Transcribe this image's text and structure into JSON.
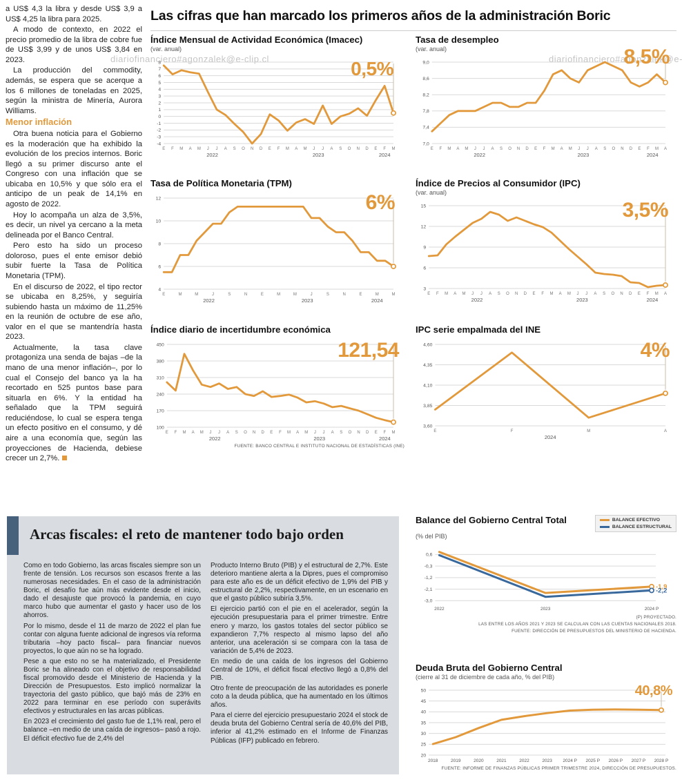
{
  "watermark": "diariofinanciero#agonzalek@e-clip.cl",
  "colors": {
    "accent": "#E2993B",
    "blue": "#39699C",
    "panel": "#D9DDE2",
    "accent_bar": "#47617C"
  },
  "month_letters": [
    "E",
    "F",
    "M",
    "A",
    "M",
    "J",
    "J",
    "A",
    "S",
    "O",
    "N",
    "D"
  ],
  "article": {
    "paragraphs": [
      "a US$ 4,3 la libra y desde US$ 3,9 a US$ 4,25 la libra para 2025.",
      "A modo de contexto, en 2022 el precio promedio de la libra de cobre fue de US$ 3,99 y de unos US$ 3,84 en 2023.",
      "La producción del commodity, además, se espera que se acerque a los 6 millones de toneladas en 2025, según la ministra de Minería, Aurora Williams."
    ],
    "subhead": "Menor inflación",
    "paragraphs2": [
      "Otra buena noticia para el Gobierno es la moderación que ha exhibido la evolución de los precios internos. Boric llegó a su primer discurso ante el Congreso con una inflación que se ubicaba en 10,5% y que sólo era el anticipo de un peak de 14,1% en agosto de 2022.",
      "Hoy lo acompaña un alza de 3,5%, es decir, un nivel ya cercano a la meta delineada por el Banco Central.",
      "Pero esto ha sido un proceso doloroso, pues el ente emisor debió subir fuerte la Tasa de Política Monetaria (TPM).",
      "En el discurso de 2022, el tipo rector se ubicaba en 8,25%, y seguiría subiendo hasta un máximo de 11,25% en la reunión de octubre de ese año, valor en el que se mantendría hasta 2023.",
      "Actualmente, la tasa clave protagoniza una senda de bajas –de la mano de una menor inflación–, por lo cual el Consejo del banco ya la ha recortado en 525 puntos base para situarla en 6%. Y la entidad ha señalado que la TPM seguirá reduciéndose, lo cual se espera tenga un efecto positivo en el consumo, y dé aire a una economía que, según las proyecciones de Hacienda, debiese crecer un 2,7%."
    ]
  },
  "main": {
    "title": "Las cifras que han marcado los primeros años de la administración Boric",
    "source": "FUENTE: BANCO CENTRAL E INSTITUTO NACIONAL DE ESTADÍSTICAS (INE)"
  },
  "fiscal": {
    "title": "Arcas fiscales: el reto de mantener todo bajo orden",
    "col1": [
      "Como en todo Gobierno, las arcas fiscales siempre son un frente de tensión. Los recursos son escasos frente a las numerosas necesidades. En el caso de la administración Boric, el desafío fue aún más evidente desde el inicio, dado el desajuste que provocó la pandemia, en cuyo marco hubo que aumentar el gasto y hacer uso de los ahorros.",
      "Por lo mismo, desde el 11 de marzo de 2022 el plan fue contar con alguna fuente adicional de ingresos vía reforma tributaria –hoy pacto fiscal– para financiar nuevos proyectos, lo que aún no se ha logrado.",
      "Pese a que esto no se ha materializado, el Presidente Boric se ha alineado con el objetivo de responsabilidad fiscal promovido desde el Ministerio de Hacienda y la Dirección de Presupuestos. Esto implicó normalizar la trayectoria del gasto público, que bajó más de 23% en 2022 para terminar en ese período con superávits efectivos y estructurales en las arcas públicas.",
      "En 2023 el crecimiento del gasto fue de 1,1% real, pero el balance –en medio de una caída de ingresos– pasó a rojo. El déficit efectivo fue de 2,4% del"
    ],
    "col2": [
      "Producto Interno Bruto (PIB) y el estructural de 2,7%. Este deterioro mantiene alerta a la Dipres, pues el compromiso para este año es de un déficit efectivo de 1,9% del PIB y estructural de 2,2%, respectivamente, en un escenario en que el gasto público subiría 3,5%.",
      "El ejercicio partió con el pie en el acelerador, según la ejecución presupuestaria para el primer trimestre. Entre enero y marzo, los gastos totales del sector público se expandieron 7,7% respecto al mismo lapso del año anterior, una aceleración si se compara con la tasa de variación de 5,4% de 2023.",
      "En medio de una caída de los ingresos del Gobierno Central de 10%, el déficit fiscal efectivo llegó a 0,8% del PIB.",
      "Otro frente de preocupación de las autoridades es ponerle coto a la deuda pública, que ha aumentado en los últimos años.",
      "Para el cierre del ejercicio presupuestario 2024 el stock de deuda bruta del Gobierno Central sería de 40,6% del PIB, inferior al 41,2% estimado en el Informe de Finanzas Públicas (IFP) publicado en febrero."
    ]
  },
  "chart_data": [
    {
      "id": "imacec",
      "type": "line",
      "title": "Índice Mensual de Actividad Económica (Imacec)",
      "subtitle": "(var. anual)",
      "big_value": "0,5%",
      "ylim": [
        -4,
        8
      ],
      "y_ticks": [
        8,
        7,
        6,
        5,
        4,
        3,
        2,
        1,
        0,
        -1,
        -2,
        -3,
        -4
      ],
      "y_tick_labels": [
        "8",
        "7",
        "6",
        "5",
        "4",
        "3",
        "2",
        "1",
        "0",
        "-1",
        "-2",
        "-3",
        "-4"
      ],
      "x_mode": "months",
      "label_every": 1,
      "years": [
        "2022",
        "2023",
        "2024"
      ],
      "series": [
        {
          "name": "Imacec",
          "color": "accent",
          "end_dot": true,
          "values": [
            7.5,
            6.2,
            6.8,
            6.5,
            6.3,
            3.6,
            1.0,
            0.2,
            -1.1,
            -2.3,
            -4.0,
            -2.6,
            0.3,
            -0.6,
            -2.1,
            -0.9,
            -0.4,
            -1.1,
            1.6,
            -1.1,
            0.0,
            0.4,
            1.2,
            0.1,
            2.4,
            4.5,
            0.5
          ]
        }
      ]
    },
    {
      "id": "desempleo",
      "type": "line",
      "title": "Tasa de desempleo",
      "subtitle": "(var. anual)",
      "big_value": "8,5%",
      "ylim": [
        7.0,
        9.0
      ],
      "y_ticks": [
        9.0,
        8.6,
        8.2,
        7.8,
        7.4,
        7.0
      ],
      "y_tick_labels": [
        "9,0",
        "8,6",
        "8,2",
        "7,8",
        "7,4",
        "7,0"
      ],
      "x_mode": "months",
      "label_every": 1,
      "years": [
        "2022",
        "2023",
        "2024"
      ],
      "series": [
        {
          "name": "Tasa de desempleo",
          "color": "accent",
          "end_dot": true,
          "values": [
            7.3,
            7.5,
            7.7,
            7.8,
            7.8,
            7.8,
            7.9,
            8.0,
            8.0,
            7.9,
            7.9,
            8.0,
            8.0,
            8.3,
            8.7,
            8.8,
            8.6,
            8.5,
            8.8,
            8.9,
            9.0,
            8.9,
            8.8,
            8.5,
            8.4,
            8.5,
            8.7,
            8.5
          ]
        }
      ]
    },
    {
      "id": "tpm",
      "type": "line",
      "title": "Tasa de Política Monetaria (TPM)",
      "big_value": "6%",
      "ylim": [
        4,
        12
      ],
      "y_ticks": [
        12,
        10,
        8,
        6,
        4
      ],
      "y_tick_labels": [
        "12",
        "10",
        "8",
        "6",
        "4"
      ],
      "x_mode": "months",
      "label_every": 2,
      "years": [
        "2022",
        "2023",
        "2024"
      ],
      "series": [
        {
          "name": "TPM",
          "color": "accent",
          "end_dot": true,
          "values": [
            5.5,
            5.5,
            7.0,
            7.0,
            8.25,
            9.0,
            9.75,
            9.75,
            10.75,
            11.25,
            11.25,
            11.25,
            11.25,
            11.25,
            11.25,
            11.25,
            11.25,
            11.25,
            10.25,
            10.25,
            9.5,
            9.0,
            9.0,
            8.25,
            7.25,
            7.25,
            6.5,
            6.5,
            6.0
          ]
        }
      ]
    },
    {
      "id": "ipc",
      "type": "line",
      "title": "Índice de Precios al Consumidor (IPC)",
      "subtitle": "(var. anual)",
      "big_value": "3,5%",
      "ylim": [
        3,
        15
      ],
      "y_ticks": [
        15,
        12,
        9,
        6,
        3
      ],
      "y_tick_labels": [
        "15",
        "12",
        "9",
        "6",
        "3"
      ],
      "x_mode": "months",
      "label_every": 1,
      "years": [
        "2022",
        "2023",
        "2024"
      ],
      "series": [
        {
          "name": "IPC",
          "color": "accent",
          "end_dot": true,
          "values": [
            7.7,
            7.8,
            9.4,
            10.5,
            11.5,
            12.5,
            13.1,
            14.1,
            13.7,
            12.8,
            13.3,
            12.8,
            12.3,
            11.9,
            11.1,
            9.9,
            8.7,
            7.6,
            6.5,
            5.3,
            5.1,
            5.0,
            4.8,
            3.9,
            3.8,
            3.2,
            3.4,
            3.5
          ]
        }
      ]
    },
    {
      "id": "incertidumbre",
      "type": "line",
      "title": "Índice diario de incertidumbre económica",
      "big_value": "121,54",
      "ylim": [
        100,
        450
      ],
      "y_ticks": [
        450,
        380,
        310,
        240,
        170,
        100
      ],
      "y_tick_labels": [
        "450",
        "380",
        "310",
        "240",
        "170",
        "100"
      ],
      "x_mode": "months",
      "label_every": 1,
      "years": [
        "2022",
        "2023",
        "2024"
      ],
      "series": [
        {
          "name": "Incertidumbre económica",
          "color": "accent",
          "end_dot": true,
          "values": [
            290,
            255,
            410,
            340,
            280,
            270,
            285,
            262,
            270,
            240,
            232,
            252,
            228,
            232,
            238,
            225,
            205,
            210,
            200,
            185,
            190,
            180,
            170,
            155,
            140,
            130,
            121.54
          ]
        }
      ]
    },
    {
      "id": "ipc-ine",
      "type": "line",
      "title": "IPC serie empalmada del INE",
      "big_value": "4%",
      "ylim": [
        3.6,
        4.6
      ],
      "y_ticks": [
        4.6,
        4.35,
        4.1,
        3.85,
        3.6
      ],
      "y_tick_labels": [
        "4,60",
        "4,35",
        "4,10",
        "3,85",
        "3,60"
      ],
      "x_mode": "months",
      "label_every": 1,
      "years": [
        "2024"
      ],
      "series": [
        {
          "name": "IPC serie empalmada",
          "color": "accent",
          "end_dot": true,
          "values": [
            3.8,
            4.5,
            3.7,
            4.0
          ]
        }
      ]
    },
    {
      "id": "balance",
      "type": "line",
      "title": "Balance del Gobierno Central Total",
      "subtitle": "(% del PIB)",
      "legend": [
        "BALANCE EFECTIVO",
        "BALANCE ESTRUCTURAL"
      ],
      "ylim": [
        -3.2,
        1.0
      ],
      "y_ticks": [
        0.6,
        -0.3,
        -1.2,
        -2.1,
        -3.0
      ],
      "y_tick_labels": [
        "0,6",
        "-0,3",
        "-1,2",
        "-2,1",
        "-3,0"
      ],
      "x_mode": "categories",
      "categories": [
        "2022",
        "2023",
        "2024 P"
      ],
      "series": [
        {
          "name": "Balance efectivo",
          "color": "accent",
          "end_dot": true,
          "end_label": "-1,9",
          "values": [
            0.8,
            -2.4,
            -1.9
          ]
        },
        {
          "name": "Balance estructural",
          "color": "blue",
          "end_dot": true,
          "end_label": "-2,2",
          "values": [
            0.55,
            -2.7,
            -2.2
          ]
        }
      ],
      "notes": [
        "(P) PROYECTADO.",
        "LAS ENTRE LOS AÑOS 2021 Y 2023 SE CALCULAN CON LAS CUENTAS NACIONALES 2018.",
        "FUENTE: DIRECCIÓN DE PRESUPUESTOS DEL MINISTERIO DE HACIENDA."
      ]
    },
    {
      "id": "deuda",
      "type": "line",
      "title": "Deuda Bruta del Gobierno Central",
      "subtitle": "(cierre al 31 de diciembre de cada año, % del PIB)",
      "big_value": "40,8%",
      "ylim": [
        20,
        50
      ],
      "y_ticks": [
        50,
        45,
        40,
        35,
        30,
        25,
        20
      ],
      "y_tick_labels": [
        "50",
        "45",
        "40",
        "35",
        "30",
        "25",
        "20"
      ],
      "x_mode": "categories",
      "categories": [
        "2018",
        "2019",
        "2020",
        "2021",
        "2022",
        "2023",
        "2024 P",
        "2025 P",
        "2026 P",
        "2027 P",
        "2028 P"
      ],
      "series": [
        {
          "name": "Deuda bruta",
          "color": "accent",
          "end_dot": true,
          "values": [
            25.1,
            28.3,
            32.5,
            36.3,
            38.0,
            39.4,
            40.6,
            41.0,
            41.1,
            41.0,
            40.8
          ]
        }
      ],
      "source": "FUENTE: INFORME DE FINANZAS PÚBLICAS PRIMER TRIMESTRE 2024, DIRECCIÓN DE PRESUPUESTOS."
    }
  ]
}
